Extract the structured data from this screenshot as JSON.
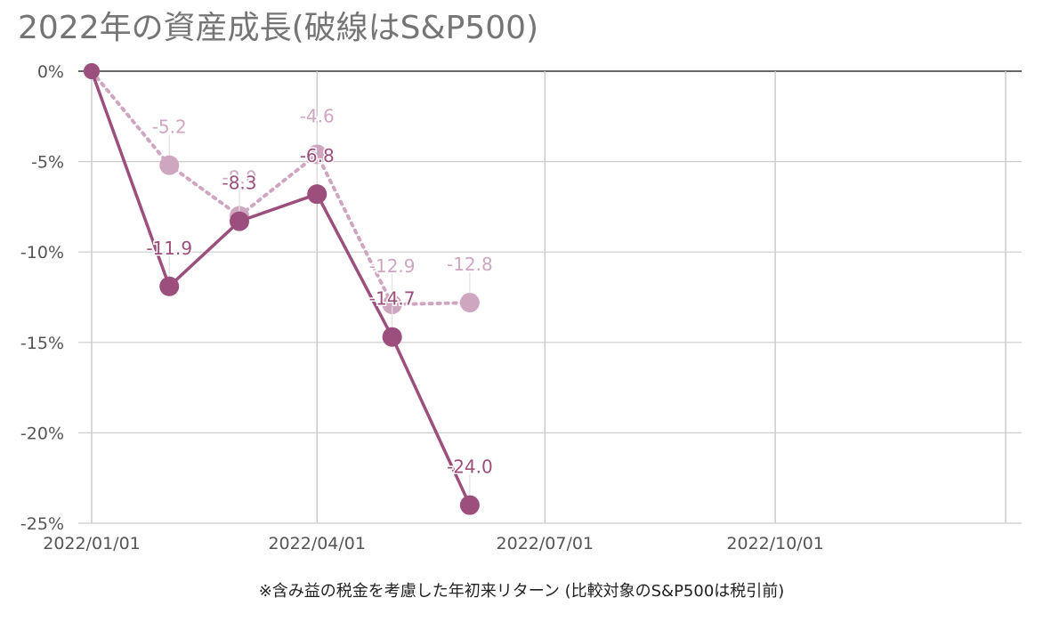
{
  "chart_data": {
    "type": "line",
    "title": "2022年の資産成長(破線はS&P500)",
    "footnote": "※含み益の税金を考慮した年初来リターン (比較対象のS&P500は税引前)",
    "xlabel": "",
    "ylabel": "",
    "x_ticks": [
      "2022/01/01",
      "2022/04/01",
      "2022/07/01",
      "2022/10/01"
    ],
    "y_ticks": [
      "0%",
      "-5%",
      "-10%",
      "-15%",
      "-20%",
      "-25%"
    ],
    "ylim": [
      -25,
      0
    ],
    "grid": true,
    "series": [
      {
        "style": "solid",
        "color": "#9c4f7c",
        "x": [
          "2022/01/01",
          "2022/02/01",
          "2022/03/01",
          "2022/04/01",
          "2022/05/01",
          "2022/06/01"
        ],
        "values": [
          0,
          -11.9,
          -8.3,
          -6.8,
          -14.7,
          -24.0
        ],
        "labels": [
          "",
          "-11.9",
          "-8.3",
          "-6.8",
          "-14.7",
          "-24.0"
        ]
      },
      {
        "style": "dotted",
        "color": "#cfa6c0",
        "x": [
          "2022/01/01",
          "2022/02/01",
          "2022/03/01",
          "2022/04/01",
          "2022/05/01",
          "2022/06/01"
        ],
        "values": [
          0,
          -5.2,
          -8.0,
          -4.6,
          -12.9,
          -12.8
        ],
        "labels": [
          "",
          "-5.2",
          "-8.0",
          "-4.6",
          "-12.9",
          "-12.8"
        ]
      }
    ]
  }
}
